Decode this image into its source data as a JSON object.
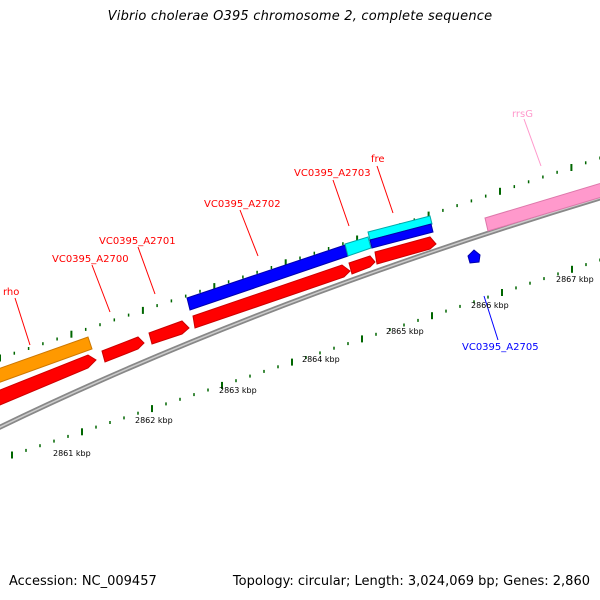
{
  "title": "Vibrio cholerae O395 chromosome 2, complete sequence",
  "footer": {
    "accession": "Accession: NC_009457",
    "summary": "Topology: circular; Length: 3,024,069 bp; Genes: 2,860"
  },
  "colors": {
    "forward_cds": "#ff0000",
    "reverse_cds": "#0000ff",
    "reverse_cds_light": "#00ffff",
    "rrna": "#ff99cc",
    "other_gene": "#ff9900",
    "backbone": "#888888",
    "tick": "#006600"
  },
  "kbp_labels": [
    "2861 kbp",
    "2862 kbp",
    "2863 kbp",
    "2864 kbp",
    "2865 kbp",
    "2866 kbp",
    "2867 kbp"
  ],
  "genes": [
    {
      "name": "rho",
      "color": "#ff0000"
    },
    {
      "name": "VC0395_A2700",
      "color": "#ff0000"
    },
    {
      "name": "VC0395_A2701",
      "color": "#ff0000"
    },
    {
      "name": "VC0395_A2702",
      "color": "#ff0000"
    },
    {
      "name": "VC0395_A2703",
      "color": "#ff0000"
    },
    {
      "name": "fre",
      "color": "#ff0000"
    },
    {
      "name": "rrsG",
      "color": "#ff99cc"
    },
    {
      "name": "VC0395_A2705",
      "color": "#0000ff"
    }
  ]
}
